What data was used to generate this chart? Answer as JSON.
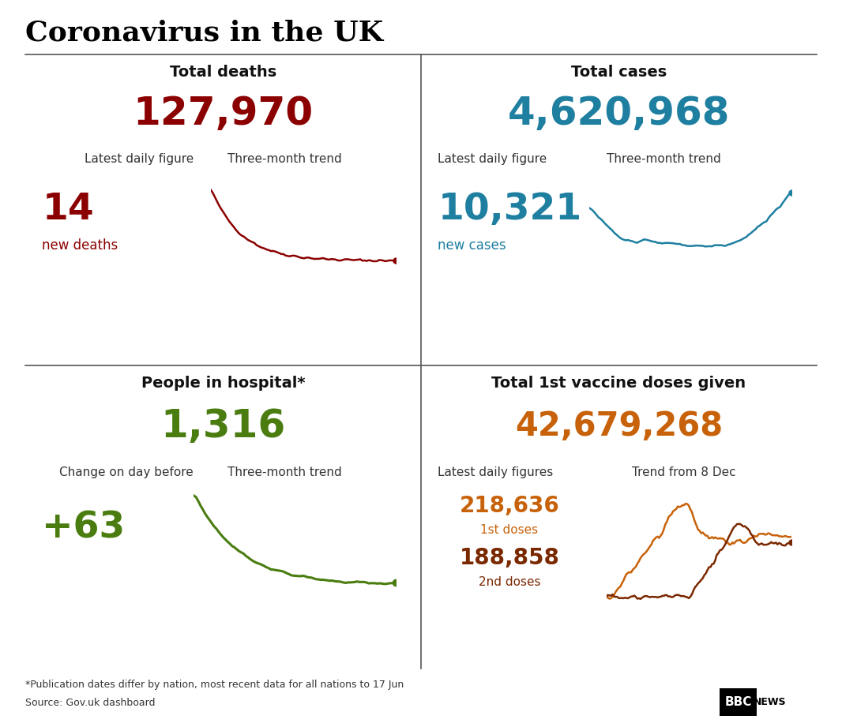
{
  "title": "Coronavirus in the UK",
  "bg_color": "#ffffff",
  "title_color": "#000000",
  "divider_color": "#555555",
  "deaths_label": "Total deaths",
  "deaths_total": "127,970",
  "deaths_total_color": "#8b0000",
  "deaths_daily_label": "Latest daily figure",
  "deaths_trend_label": "Three-month trend",
  "deaths_daily_value": "14",
  "deaths_daily_sublabel": "new deaths",
  "deaths_daily_color": "#8b0000",
  "deaths_trend_color": "#8b0000",
  "cases_label": "Total cases",
  "cases_total": "4,620,968",
  "cases_total_color": "#1e7fa0",
  "cases_daily_label": "Latest daily figure",
  "cases_trend_label": "Three-month trend",
  "cases_daily_value": "10,321",
  "cases_daily_sublabel": "new cases",
  "cases_daily_color": "#1e7fa0",
  "cases_trend_color": "#1e7fa0",
  "hospital_label": "People in hospital*",
  "hospital_total": "1,316",
  "hospital_total_color": "#4a7c10",
  "hospital_daily_label": "Change on day before",
  "hospital_trend_label": "Three-month trend",
  "hospital_daily_value": "+63",
  "hospital_daily_color": "#4a7c10",
  "hospital_trend_color": "#4a7c10",
  "vaccine_label": "Total 1st vaccine doses given",
  "vaccine_total": "42,679,268",
  "vaccine_total_color": "#c8620a",
  "vaccine_daily_label": "Latest daily figures",
  "vaccine_trend_label": "Trend from 8 Dec",
  "vaccine_dose1_value": "218,636",
  "vaccine_dose1_sublabel": "1st doses",
  "vaccine_dose1_color": "#c8620a",
  "vaccine_dose2_value": "188,858",
  "vaccine_dose2_sublabel": "2nd doses",
  "vaccine_dose2_color": "#7a2800",
  "footnote": "*Publication dates differ by nation, most recent data for all nations to 17 Jun",
  "source": "Source: Gov.uk dashboard"
}
